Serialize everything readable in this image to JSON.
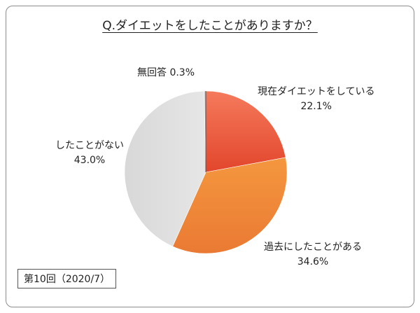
{
  "chart_data": {
    "type": "pie",
    "title": "Q.ダイエットをしたことがありますか？",
    "slices": [
      {
        "label": "現在ダイエットをしている",
        "value": 22.1,
        "value_label": "22.1%",
        "color": "#e8553a"
      },
      {
        "label": "過去にしたことがある",
        "value": 34.6,
        "value_label": "34.6%",
        "color": "#f08a3c"
      },
      {
        "label": "したことがない",
        "value": 43.0,
        "value_label": "43.0%",
        "color": "#dcdcdc"
      },
      {
        "label": "無回答",
        "value": 0.3,
        "value_label": "0.3%",
        "color": "#bbbbbb"
      }
    ]
  },
  "footer": "第10回（2020/7）"
}
